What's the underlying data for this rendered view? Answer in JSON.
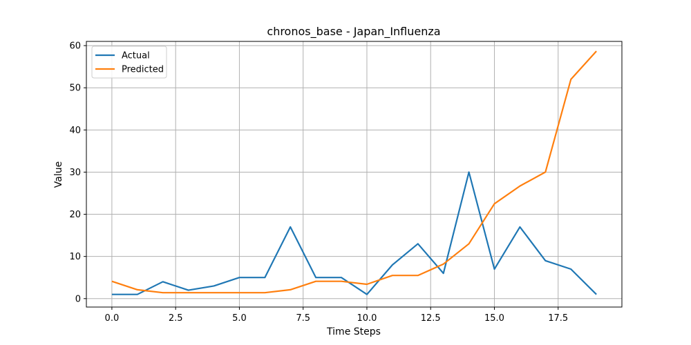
{
  "chart_data": {
    "type": "line",
    "title": "chronos_base - Japan_Influenza",
    "xlabel": "Time Steps",
    "ylabel": "Value",
    "xlim": [
      -1,
      20
    ],
    "ylim": [
      -2,
      61
    ],
    "xticks": [
      0.0,
      2.5,
      5.0,
      7.5,
      10.0,
      12.5,
      15.0,
      17.5
    ],
    "xtick_labels": [
      "0.0",
      "2.5",
      "5.0",
      "7.5",
      "10.0",
      "12.5",
      "15.0",
      "17.5"
    ],
    "yticks": [
      0,
      10,
      20,
      30,
      40,
      50,
      60
    ],
    "ytick_labels": [
      "0",
      "10",
      "20",
      "30",
      "40",
      "50",
      "60"
    ],
    "grid": true,
    "legend": "top-left",
    "x": [
      0,
      1,
      2,
      3,
      4,
      5,
      6,
      7,
      8,
      9,
      10,
      11,
      12,
      13,
      14,
      15,
      16,
      17,
      18,
      19
    ],
    "series": [
      {
        "name": "Actual",
        "color": "#1f77b4",
        "values": [
          1,
          1,
          4,
          2,
          3,
          5,
          5,
          17,
          5,
          5,
          1,
          8,
          13,
          6,
          30,
          7,
          17,
          9,
          7,
          1
        ]
      },
      {
        "name": "Predicted",
        "color": "#ff7f0e",
        "values": [
          4.1,
          2.1,
          1.4,
          1.4,
          1.4,
          1.4,
          1.4,
          2.1,
          4.1,
          4.1,
          3.4,
          5.5,
          5.5,
          8.2,
          13,
          22.5,
          26.7,
          30,
          52,
          58.7
        ]
      }
    ]
  }
}
